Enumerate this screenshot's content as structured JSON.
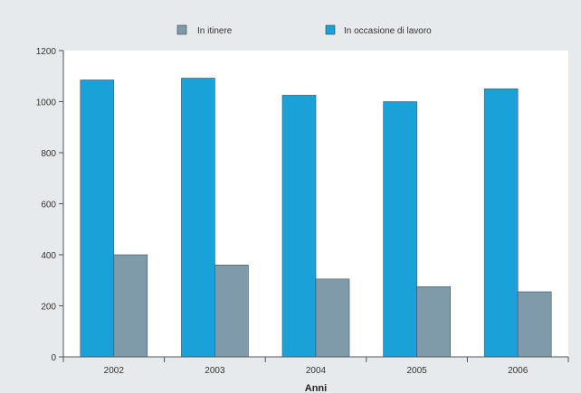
{
  "chart_data": {
    "type": "bar",
    "title": "",
    "xlabel": "Anni",
    "ylabel": "",
    "categories": [
      "2002",
      "2003",
      "2004",
      "2005",
      "2006"
    ],
    "series": [
      {
        "name": "In itinere",
        "color": "#7f9aa9",
        "values": [
          400,
          360,
          305,
          275,
          255
        ]
      },
      {
        "name": "In occasione di lavoro",
        "color": "#1aa1d8",
        "values": [
          1085,
          1092,
          1025,
          1000,
          1050
        ]
      }
    ],
    "bar_order": [
      "In occasione di lavoro",
      "In itinere"
    ],
    "ylim": [
      0,
      1200
    ],
    "yticks": [
      0,
      200,
      400,
      600,
      800,
      1000,
      1200
    ],
    "grid": false,
    "legend_position": "top",
    "colors": {
      "background": "#e6eaec",
      "plot_background": "#ffffff",
      "axis": "#555555"
    }
  }
}
